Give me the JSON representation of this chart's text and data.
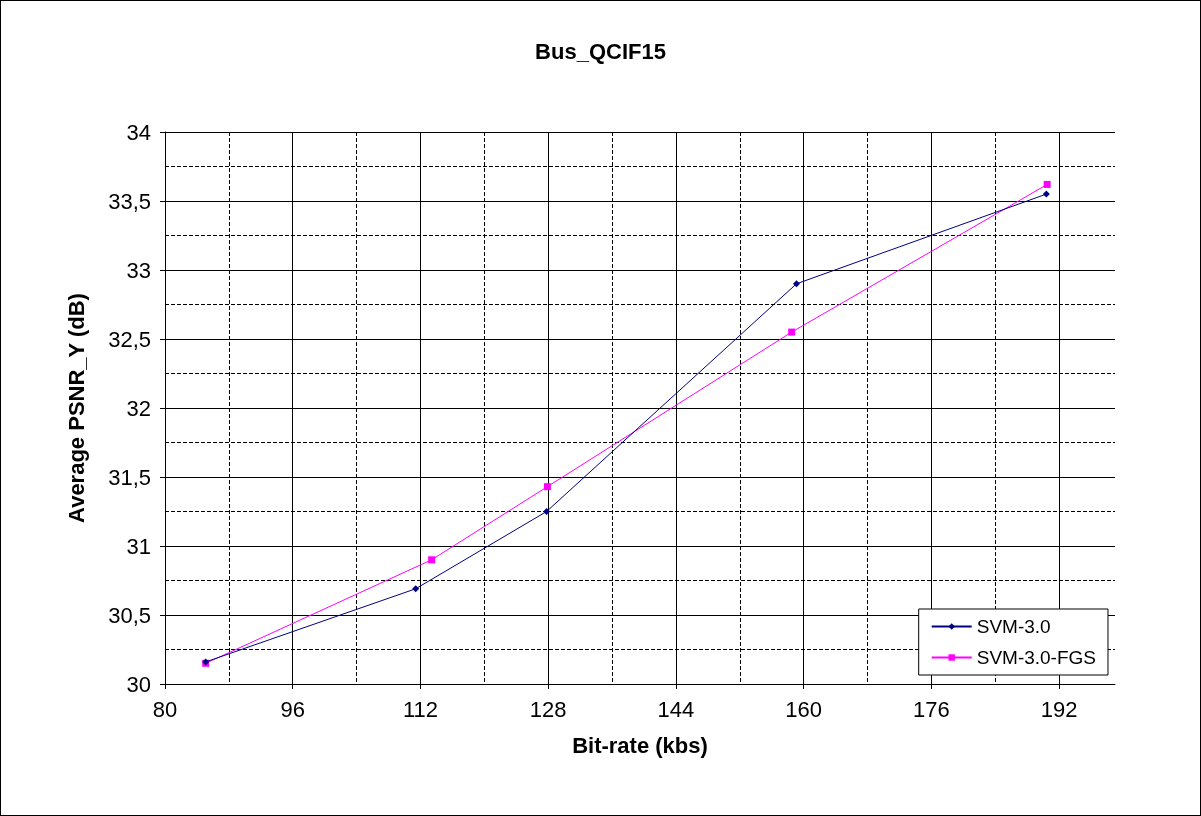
{
  "chart_data": {
    "type": "line",
    "title": "Bus_QCIF15",
    "xlabel": "Bit-rate (kbs)",
    "ylabel": "Average PSNR_Y (dB)",
    "xlim": [
      80,
      199
    ],
    "xticks": [
      80,
      96,
      112,
      128,
      144,
      160,
      176,
      192
    ],
    "ylim": [
      30,
      34
    ],
    "yticks": [
      30,
      {
        "value": 30.5,
        "label": "30,5"
      },
      31,
      {
        "value": 31.5,
        "label": "31,5"
      },
      32,
      {
        "value": 32.5,
        "label": "32,5"
      },
      33,
      {
        "value": 33.5,
        "label": "33,5"
      },
      34
    ],
    "grid": true,
    "legend": "bottom right",
    "series": [
      {
        "name": "SVM-3.0",
        "color": "#000080",
        "marker": "diamond",
        "x": [
          85.1,
          111.4,
          127.8,
          159.1,
          190.4
        ],
        "values": [
          30.16,
          30.69,
          31.25,
          32.9,
          33.55
        ]
      },
      {
        "name": "SVM-3.0-FGS",
        "color": "#ff00ff",
        "marker": "square",
        "x": [
          85.1,
          113.4,
          127.9,
          158.5,
          190.5
        ],
        "values": [
          30.15,
          30.9,
          31.43,
          32.55,
          33.62
        ]
      }
    ]
  }
}
